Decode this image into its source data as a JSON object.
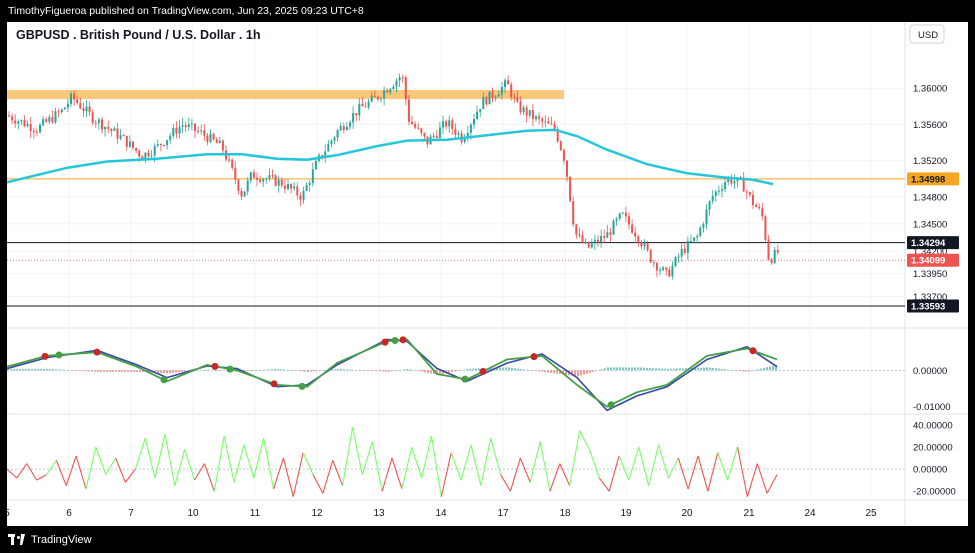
{
  "header": {
    "publisher_line": "TimothyFigueroa published on TradingView.com, Jun 23, 2025 09:23 UTC+8"
  },
  "symbol": {
    "title": "GBPUSD . British Pound / U.S. Dollar . 1h",
    "currency": "USD"
  },
  "footer": {
    "brand": "TradingView"
  },
  "colors": {
    "up": "#26a69a",
    "down": "#ef5350",
    "ma": "#26c6da",
    "resistance_zone": "#fbc77a",
    "orange_line": "#f5a623",
    "macd_fast": "#2e7d32",
    "macd_slow": "#3949ab",
    "cci": "#ef5350"
  },
  "chart_data": [
    {
      "type": "candlestick",
      "pane": "price",
      "title": "GBPUSD . British Pound / U.S. Dollar . 1h",
      "x_tick_labels": [
        "5",
        "6",
        "7",
        "10",
        "11",
        "12",
        "13",
        "14",
        "17",
        "18",
        "19",
        "20",
        "21",
        "24",
        "25"
      ],
      "y_tick_labels": [
        "1.36000",
        "1.35600",
        "1.35200",
        "1.34800",
        "1.34500",
        "1.34200",
        "1.33950",
        "1.33700"
      ],
      "ylim": [
        1.3335,
        1.364
      ],
      "price_labels": [
        {
          "label": "1.34998",
          "value": 1.34998,
          "style": "orange"
        },
        {
          "label": "1.34294",
          "value": 1.34294,
          "style": "black"
        },
        {
          "label": "1.34099",
          "value": 1.34099,
          "style": "red"
        },
        {
          "label": "1.33593",
          "value": 1.33593,
          "style": "black"
        }
      ],
      "resistance_zone": [
        1.3588,
        1.3598
      ],
      "moving_average": [
        [
          0,
          1.3496
        ],
        [
          60,
          1.3512
        ],
        [
          100,
          1.3519
        ],
        [
          150,
          1.3522
        ],
        [
          200,
          1.3527
        ],
        [
          235,
          1.3527
        ],
        [
          270,
          1.3522
        ],
        [
          300,
          1.3521
        ],
        [
          330,
          1.3526
        ],
        [
          370,
          1.3536
        ],
        [
          400,
          1.3542
        ],
        [
          440,
          1.3543
        ],
        [
          480,
          1.3548
        ],
        [
          520,
          1.3553
        ],
        [
          548,
          1.3554
        ],
        [
          570,
          1.3547
        ],
        [
          600,
          1.3532
        ],
        [
          640,
          1.3516
        ],
        [
          680,
          1.3506
        ],
        [
          720,
          1.3501
        ],
        [
          745,
          1.3499
        ],
        [
          766,
          1.3494
        ]
      ],
      "close_path": [
        [
          0,
          1.357
        ],
        [
          30,
          1.3555
        ],
        [
          55,
          1.3575
        ],
        [
          65,
          1.359
        ],
        [
          85,
          1.3568
        ],
        [
          115,
          1.3545
        ],
        [
          135,
          1.3525
        ],
        [
          150,
          1.3535
        ],
        [
          175,
          1.356
        ],
        [
          195,
          1.355
        ],
        [
          215,
          1.3535
        ],
        [
          235,
          1.3482
        ],
        [
          245,
          1.3505
        ],
        [
          275,
          1.3495
        ],
        [
          295,
          1.348
        ],
        [
          310,
          1.3518
        ],
        [
          330,
          1.3552
        ],
        [
          350,
          1.3575
        ],
        [
          370,
          1.359
        ],
        [
          385,
          1.3605
        ],
        [
          395,
          1.3615
        ],
        [
          402,
          1.3565
        ],
        [
          420,
          1.354
        ],
        [
          440,
          1.3562
        ],
        [
          455,
          1.3545
        ],
        [
          475,
          1.3585
        ],
        [
          485,
          1.3592
        ],
        [
          500,
          1.3605
        ],
        [
          510,
          1.358
        ],
        [
          530,
          1.3565
        ],
        [
          548,
          1.3555
        ],
        [
          558,
          1.352
        ],
        [
          568,
          1.344
        ],
        [
          580,
          1.3423
        ],
        [
          600,
          1.3438
        ],
        [
          615,
          1.346
        ],
        [
          630,
          1.3438
        ],
        [
          645,
          1.341
        ],
        [
          660,
          1.3393
        ],
        [
          675,
          1.342
        ],
        [
          690,
          1.3435
        ],
        [
          705,
          1.348
        ],
        [
          720,
          1.35
        ],
        [
          735,
          1.3495
        ],
        [
          745,
          1.3475
        ],
        [
          755,
          1.346
        ],
        [
          762,
          1.341
        ],
        [
          772,
          1.342
        ]
      ]
    },
    {
      "type": "line",
      "pane": "macd",
      "y_tick_labels": [
        "0.00000",
        "-0.01000"
      ],
      "series": [
        {
          "color": "green",
          "values": [
            [
              0,
              0.001
            ],
            [
              40,
              0.004
            ],
            [
              90,
              0.005
            ],
            [
              130,
              0.001
            ],
            [
              160,
              -0.003
            ],
            [
              200,
              0.0015
            ],
            [
              230,
              0.0
            ],
            [
              270,
              -0.004
            ],
            [
              300,
              -0.0045
            ],
            [
              330,
              0.002
            ],
            [
              380,
              0.008
            ],
            [
              400,
              0.0085
            ],
            [
              430,
              -0.001
            ],
            [
              460,
              -0.0025
            ],
            [
              500,
              0.003
            ],
            [
              535,
              0.004
            ],
            [
              570,
              -0.004
            ],
            [
              600,
              -0.01
            ],
            [
              630,
              -0.006
            ],
            [
              660,
              -0.004
            ],
            [
              700,
              0.004
            ],
            [
              740,
              0.006
            ],
            [
              770,
              0.003
            ]
          ]
        },
        {
          "color": "darkred",
          "values": [
            [
              0,
              0.0005
            ],
            [
              40,
              0.0035
            ],
            [
              90,
              0.0055
            ],
            [
              130,
              0.0015
            ],
            [
              160,
              -0.002
            ],
            [
              200,
              0.0012
            ],
            [
              230,
              0.0005
            ],
            [
              270,
              -0.0045
            ],
            [
              300,
              -0.004
            ],
            [
              330,
              0.0015
            ],
            [
              380,
              0.0085
            ],
            [
              400,
              0.008
            ],
            [
              430,
              0.0005
            ],
            [
              460,
              -0.003
            ],
            [
              500,
              0.002
            ],
            [
              535,
              0.0045
            ],
            [
              570,
              -0.002
            ],
            [
              600,
              -0.011
            ],
            [
              630,
              -0.007
            ],
            [
              660,
              -0.0045
            ],
            [
              700,
              0.003
            ],
            [
              740,
              0.0065
            ],
            [
              770,
              0.001
            ]
          ]
        }
      ]
    },
    {
      "type": "line",
      "pane": "cci",
      "y_tick_labels": [
        "40.00000",
        "20.00000",
        "0.00000",
        "-20.00000"
      ],
      "ylim": [
        -28,
        50
      ],
      "values": [
        0,
        -8,
        5,
        -10,
        -5,
        8,
        -15,
        12,
        -18,
        20,
        -5,
        10,
        -12,
        0,
        28,
        -8,
        32,
        -15,
        18,
        -10,
        5,
        -20,
        30,
        -12,
        22,
        -8,
        28,
        -18,
        10,
        -25,
        15,
        -5,
        -22,
        8,
        -15,
        38,
        -5,
        25,
        -20,
        10,
        -18,
        20,
        -8,
        30,
        -25,
        15,
        -10,
        22,
        -15,
        28,
        -5,
        -20,
        10,
        -12,
        25,
        -20,
        5,
        -15,
        35,
        18,
        -8,
        -20,
        12,
        -10,
        20,
        -15,
        22,
        -8,
        10,
        -18,
        12,
        -20,
        15,
        -10,
        20,
        -25,
        5,
        -22,
        -5
      ]
    }
  ]
}
